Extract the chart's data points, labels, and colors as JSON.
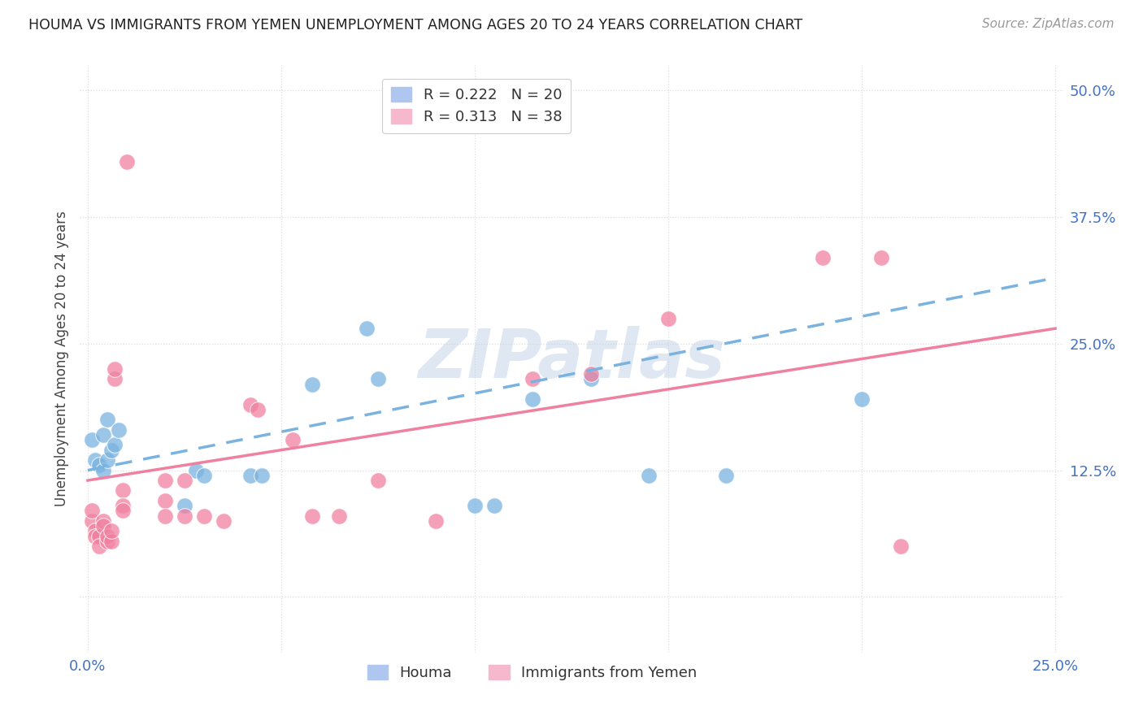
{
  "title": "HOUMA VS IMMIGRANTS FROM YEMEN UNEMPLOYMENT AMONG AGES 20 TO 24 YEARS CORRELATION CHART",
  "source": "Source: ZipAtlas.com",
  "ylabel_label": "Unemployment Among Ages 20 to 24 years",
  "legend_labels": [
    "Houma",
    "Immigrants from Yemen"
  ],
  "houma_color": "#7ab3e0",
  "yemen_color": "#f080a0",
  "houma_scatter": [
    [
      0.001,
      0.155
    ],
    [
      0.002,
      0.135
    ],
    [
      0.003,
      0.13
    ],
    [
      0.004,
      0.16
    ],
    [
      0.004,
      0.125
    ],
    [
      0.005,
      0.175
    ],
    [
      0.005,
      0.135
    ],
    [
      0.006,
      0.145
    ],
    [
      0.007,
      0.15
    ],
    [
      0.008,
      0.165
    ],
    [
      0.025,
      0.09
    ],
    [
      0.028,
      0.125
    ],
    [
      0.03,
      0.12
    ],
    [
      0.042,
      0.12
    ],
    [
      0.045,
      0.12
    ],
    [
      0.058,
      0.21
    ],
    [
      0.072,
      0.265
    ],
    [
      0.075,
      0.215
    ],
    [
      0.1,
      0.09
    ],
    [
      0.105,
      0.09
    ],
    [
      0.115,
      0.195
    ],
    [
      0.13,
      0.215
    ],
    [
      0.145,
      0.12
    ],
    [
      0.165,
      0.12
    ],
    [
      0.2,
      0.195
    ]
  ],
  "yemen_scatter": [
    [
      0.001,
      0.075
    ],
    [
      0.001,
      0.085
    ],
    [
      0.002,
      0.065
    ],
    [
      0.002,
      0.06
    ],
    [
      0.003,
      0.06
    ],
    [
      0.003,
      0.05
    ],
    [
      0.004,
      0.075
    ],
    [
      0.004,
      0.07
    ],
    [
      0.005,
      0.055
    ],
    [
      0.005,
      0.06
    ],
    [
      0.006,
      0.055
    ],
    [
      0.006,
      0.065
    ],
    [
      0.007,
      0.215
    ],
    [
      0.007,
      0.225
    ],
    [
      0.009,
      0.105
    ],
    [
      0.009,
      0.09
    ],
    [
      0.009,
      0.085
    ],
    [
      0.01,
      0.43
    ],
    [
      0.02,
      0.115
    ],
    [
      0.02,
      0.095
    ],
    [
      0.02,
      0.08
    ],
    [
      0.025,
      0.115
    ],
    [
      0.025,
      0.08
    ],
    [
      0.03,
      0.08
    ],
    [
      0.035,
      0.075
    ],
    [
      0.042,
      0.19
    ],
    [
      0.044,
      0.185
    ],
    [
      0.053,
      0.155
    ],
    [
      0.058,
      0.08
    ],
    [
      0.065,
      0.08
    ],
    [
      0.075,
      0.115
    ],
    [
      0.09,
      0.075
    ],
    [
      0.115,
      0.215
    ],
    [
      0.13,
      0.22
    ],
    [
      0.15,
      0.275
    ],
    [
      0.19,
      0.335
    ],
    [
      0.205,
      0.335
    ],
    [
      0.21,
      0.05
    ]
  ],
  "houma_line": {
    "x0": 0.0,
    "y0": 0.125,
    "x1": 0.25,
    "y1": 0.315
  },
  "yemen_line": {
    "x0": 0.0,
    "y0": 0.115,
    "x1": 0.25,
    "y1": 0.265
  },
  "xlim": [
    -0.002,
    0.252
  ],
  "ylim": [
    -0.055,
    0.525
  ],
  "xtick_vals": [
    0.0,
    0.05,
    0.1,
    0.15,
    0.2,
    0.25
  ],
  "xtick_labels": [
    "0.0%",
    "",
    "",
    "",
    "",
    "25.0%"
  ],
  "ytick_vals": [
    0.0,
    0.125,
    0.25,
    0.375,
    0.5
  ],
  "ytick_labels": [
    "",
    "12.5%",
    "25.0%",
    "37.5%",
    "50.0%"
  ],
  "background_color": "#ffffff",
  "grid_color": "#dddddd",
  "title_color": "#222222",
  "axis_label_color": "#444444",
  "tick_color": "#4472c4",
  "watermark": "ZIPatlas"
}
